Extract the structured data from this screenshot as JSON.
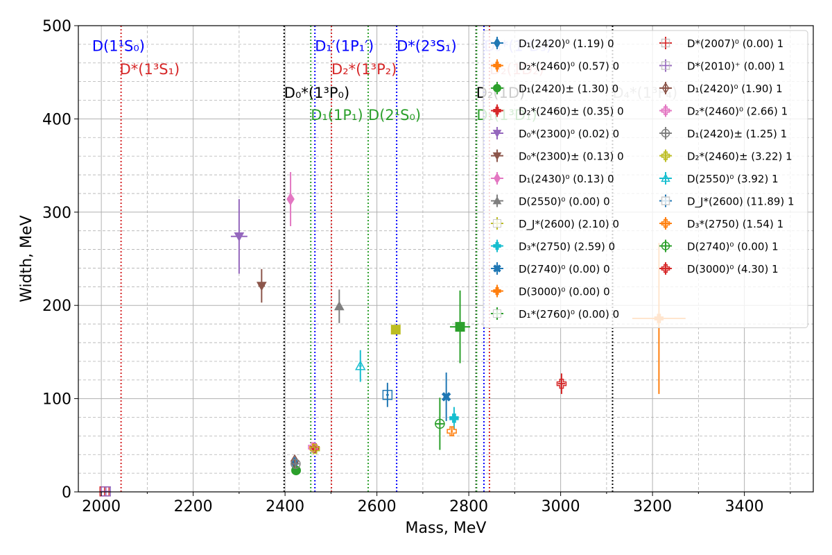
{
  "chart_data": {
    "type": "scatter",
    "xlabel": "Mass, MeV",
    "ylabel": "Width, MeV",
    "xlim": [
      1950,
      3550
    ],
    "ylim": [
      0,
      500
    ],
    "x_ticks": [
      "2000",
      "2200",
      "2400",
      "2600",
      "2800",
      "3000",
      "3200",
      "3400"
    ],
    "y_ticks": [
      "0",
      "100",
      "200",
      "300",
      "400",
      "500"
    ],
    "grid": "major solid, minor dashed",
    "legend_position": "top-right",
    "vlines": [
      {
        "x": 2043,
        "color": "#d62728",
        "label": "D*(1³S₁)"
      },
      {
        "x": 2398,
        "color": "#000000",
        "label": "D₀*(1³P₀)"
      },
      {
        "x": 2456,
        "color": "#2ca02c",
        "label": "D₁(1P₁)"
      },
      {
        "x": 2465,
        "color": "#0000ff",
        "label": "D₁′(1P₁′)"
      },
      {
        "x": 2501,
        "color": "#d62728",
        "label": "D₂*(1³P₂)"
      },
      {
        "x": 2581,
        "color": "#2ca02c",
        "label": "D(2¹S₀)"
      },
      {
        "x": 2643,
        "color": "#0000ff",
        "label": "D*(2³S₁)"
      },
      {
        "x": 2816,
        "color": "#000000",
        "label": "D₂(1D)"
      },
      {
        "x": 2817,
        "color": "#2ca02c",
        "label": "D₁(1³D₁)"
      },
      {
        "x": 2833,
        "color": "#0000ff",
        "label": "D₃*(1³D₃)"
      },
      {
        "x": 2845,
        "color": "#d62728",
        "label": "D₂(1D₂)"
      },
      {
        "x": 3113,
        "color": "#000000",
        "label": "D₄*(1³F₄)"
      }
    ],
    "line_labels": [
      {
        "x": 1980,
        "y": 478,
        "color": "#0000ff",
        "text": "D(1¹S₀)"
      },
      {
        "x": 2040,
        "y": 453,
        "color": "#d62728",
        "text": "D*(1³S₁)"
      },
      {
        "x": 2398,
        "y": 428,
        "color": "#000000",
        "text": "D₀*(1³P₀)"
      },
      {
        "x": 2456,
        "y": 404,
        "color": "#2ca02c",
        "text": "D₁(1P₁)"
      },
      {
        "x": 2465,
        "y": 478,
        "color": "#0000ff",
        "text": "D₁′(1P₁′)"
      },
      {
        "x": 2501,
        "y": 453,
        "color": "#d62728",
        "text": "D₂*(1³P₂)"
      },
      {
        "x": 2581,
        "y": 404,
        "color": "#2ca02c",
        "text": "D(2¹S₀)"
      },
      {
        "x": 2643,
        "y": 478,
        "color": "#0000ff",
        "text": "D*(2³S₁)"
      },
      {
        "x": 2833,
        "y": 478,
        "color": "#aaaaff",
        "text": "D₃*(1³D₃)"
      },
      {
        "x": 2845,
        "y": 453,
        "color": "#e8a0a0",
        "text": "D₂(1D₂)"
      },
      {
        "x": 2816,
        "y": 428,
        "color": "#000000",
        "text": "D₂(1D)"
      },
      {
        "x": 2817,
        "y": 404,
        "color": "#2ca02c",
        "text": "D₁(1³D₁)"
      },
      {
        "x": 3113,
        "y": 428,
        "color": "#aaaaaa",
        "text": "D₄*(1³F₄)"
      }
    ],
    "series": [
      {
        "name": "D₁(2420)⁰ (1.19) 0",
        "color": "#1f77b4",
        "marker": "diamond",
        "filled": true,
        "x": 2421,
        "y": 31,
        "xerr": 1,
        "yerr": 2
      },
      {
        "name": "D₂*(2460)⁰ (0.57) 0",
        "color": "#ff7f0e",
        "marker": "plus",
        "filled": true,
        "x": 2463,
        "y": 47,
        "xerr": 1,
        "yerr": 1
      },
      {
        "name": "D₁(2420)± (1.30) 0",
        "color": "#2ca02c",
        "marker": "circle",
        "filled": true,
        "x": 2424,
        "y": 23,
        "xerr": 1,
        "yerr": 3
      },
      {
        "name": "D₂*(2460)± (0.35) 0",
        "color": "#d62728",
        "marker": "plus",
        "filled": true,
        "x": 2465,
        "y": 47,
        "xerr": 2,
        "yerr": 3
      },
      {
        "name": "D₀*(2300)⁰ (0.02) 0",
        "color": "#9467bd",
        "marker": "triangle-down",
        "filled": true,
        "x": 2300,
        "y": 274,
        "xerr": 18,
        "yerr": 40
      },
      {
        "name": "D₀*(2300)± (0.13) 0",
        "color": "#8c564b",
        "marker": "triangle-down",
        "filled": true,
        "x": 2349,
        "y": 221,
        "xerr": 7,
        "yerr": 18
      },
      {
        "name": "D₁(2430)⁰ (0.13) 0",
        "color": "#e377c2",
        "marker": "diamond",
        "filled": true,
        "x": 2412,
        "y": 314,
        "xerr": 3,
        "yerr": 29
      },
      {
        "name": "D(2550)⁰ (0.00) 0",
        "color": "#7f7f7f",
        "marker": "triangle-up",
        "filled": true,
        "x": 2518,
        "y": 199,
        "xerr": 3,
        "yerr": 18
      },
      {
        "name": "D_J*(2600) (2.10) 0",
        "color": "#bcbd22",
        "marker": "square",
        "filled": true,
        "x": 2641,
        "y": 174,
        "xerr": 2,
        "yerr": 4
      },
      {
        "name": "D₃*(2750) (2.59) 0",
        "color": "#17becf",
        "marker": "plus",
        "filled": true,
        "x": 2768,
        "y": 79,
        "xerr": 3,
        "yerr": 12
      },
      {
        "name": "D(2740)⁰ (0.00) 0",
        "color": "#1f77b4",
        "marker": "x",
        "filled": true,
        "x": 2751,
        "y": 102,
        "xerr": 6,
        "yerr": 26
      },
      {
        "name": "D(3000)⁰ (0.00) 0",
        "color": "#ff7f0e",
        "marker": "plus",
        "filled": true,
        "x": 3214,
        "y": 186,
        "xerr": 58,
        "yerr": 81
      },
      {
        "name": "D₁*(2760)⁰ (0.00) 0",
        "color": "#2ca02c",
        "marker": "square",
        "filled": true,
        "x": 2781,
        "y": 177,
        "xerr": 22,
        "yerr": 39
      },
      {
        "name": "D*(2007)⁰ (0.00) 1",
        "color": "#d62728",
        "marker": "square-plus",
        "filled": false,
        "x": 2007,
        "y": 0.5,
        "xerr": 0,
        "yerr": 0
      },
      {
        "name": "D*(2010)⁺ (0.00) 1",
        "color": "#9467bd",
        "marker": "square-plus",
        "filled": false,
        "x": 2010,
        "y": 0.5,
        "xerr": 0,
        "yerr": 0
      },
      {
        "name": "D₁(2420)⁰ (1.90) 1",
        "color": "#8c564b",
        "marker": "diamond",
        "filled": false,
        "x": 2421,
        "y": 33,
        "xerr": 1,
        "yerr": 2
      },
      {
        "name": "D₂*(2460)⁰ (2.66) 1",
        "color": "#e377c2",
        "marker": "plus",
        "filled": false,
        "x": 2461,
        "y": 48,
        "xerr": 1,
        "yerr": 1
      },
      {
        "name": "D₁(2420)± (1.25) 1",
        "color": "#7f7f7f",
        "marker": "circle-plus",
        "filled": false,
        "x": 2423,
        "y": 30,
        "xerr": 1,
        "yerr": 3
      },
      {
        "name": "D₂*(2460)± (3.22) 1",
        "color": "#bcbd22",
        "marker": "plus",
        "filled": false,
        "x": 2465,
        "y": 46,
        "xerr": 1,
        "yerr": 3
      },
      {
        "name": "D(2550)⁰ (3.92) 1",
        "color": "#17becf",
        "marker": "triangle-up",
        "filled": false,
        "x": 2564,
        "y": 135,
        "xerr": 3,
        "yerr": 17
      },
      {
        "name": "D_J*(2600) (11.89) 1",
        "color": "#1f77b4",
        "marker": "square",
        "filled": false,
        "x": 2623,
        "y": 104,
        "xerr": 3,
        "yerr": 13
      },
      {
        "name": "D₃*(2750) (1.54) 1",
        "color": "#ff7f0e",
        "marker": "plus",
        "filled": false,
        "x": 2763,
        "y": 65,
        "xerr": 2,
        "yerr": 5
      },
      {
        "name": "D(2740)⁰ (0.00) 1",
        "color": "#2ca02c",
        "marker": "circle-plus",
        "filled": false,
        "x": 2737,
        "y": 73,
        "xerr": 11,
        "yerr": 28
      },
      {
        "name": "D(3000)⁰ (4.30) 1",
        "color": "#d62728",
        "marker": "plus",
        "filled": false,
        "x": 3002,
        "y": 116,
        "xerr": 8,
        "yerr": 11
      }
    ]
  }
}
